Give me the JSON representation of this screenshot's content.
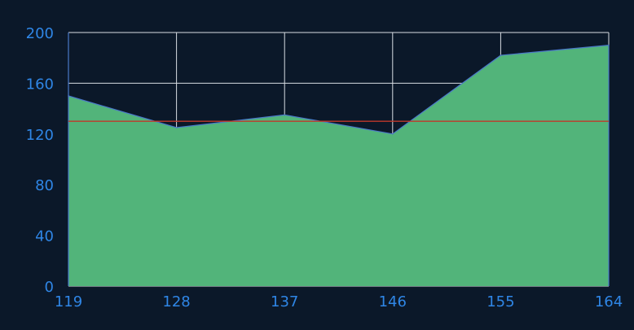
{
  "chart_data": {
    "type": "area",
    "x": [
      119,
      128,
      137,
      146,
      155,
      164
    ],
    "series": [
      {
        "values": [
          150,
          125,
          135,
          120,
          182,
          190
        ]
      }
    ],
    "reference_line": {
      "y": 130
    },
    "xlim": [
      119,
      164
    ],
    "ylim": [
      0,
      200
    ],
    "x_ticks": [
      119,
      128,
      137,
      146,
      155,
      164
    ],
    "y_ticks": [
      0,
      40,
      80,
      120,
      160,
      200
    ],
    "grid": true,
    "title": "",
    "xlabel": "",
    "ylabel": ""
  },
  "colors": {
    "background": "#0b1829",
    "area_fill": "#52b47a",
    "area_edge": "#4a78c8",
    "reference_line": "#c0392b",
    "grid": "#d8dde3",
    "tick_label": "#2f86e6"
  }
}
